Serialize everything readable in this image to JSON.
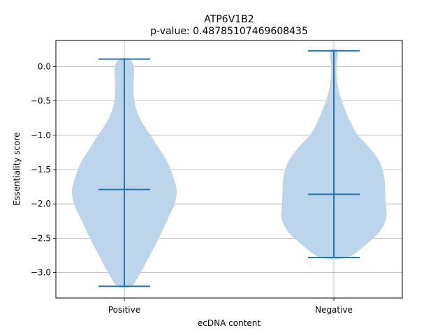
{
  "chart_data": {
    "type": "violin",
    "title": "ATP6V1B2",
    "subtitle": "p-value: 0.48785107469608435",
    "xlabel": "ecDNA content",
    "ylabel": "Essentiality score",
    "categories": [
      "Positive",
      "Negative"
    ],
    "ylim": [
      -3.37,
      0.38
    ],
    "yticks": [
      0.0,
      -0.5,
      -1.0,
      -1.5,
      -2.0,
      -2.5,
      -3.0
    ],
    "ytick_labels": [
      "0.0",
      "−0.5",
      "−1.0",
      "−1.5",
      "−2.0",
      "−2.5",
      "−3.0"
    ],
    "grid": true,
    "colors": {
      "body": "#bcd5ea",
      "lines": "#1f77b4",
      "grid": "#b0b0b0"
    },
    "series": [
      {
        "category": "Positive",
        "min": -3.2,
        "max": 0.11,
        "median": -1.79,
        "density": [
          [
            0.11,
            0.09
          ],
          [
            0.0,
            0.18
          ],
          [
            -0.2,
            0.18
          ],
          [
            -0.4,
            0.18
          ],
          [
            -0.6,
            0.22
          ],
          [
            -0.8,
            0.33
          ],
          [
            -1.0,
            0.5
          ],
          [
            -1.2,
            0.67
          ],
          [
            -1.4,
            0.83
          ],
          [
            -1.6,
            0.93
          ],
          [
            -1.8,
            1.0
          ],
          [
            -2.0,
            0.96
          ],
          [
            -2.2,
            0.84
          ],
          [
            -2.4,
            0.72
          ],
          [
            -2.6,
            0.59
          ],
          [
            -2.8,
            0.45
          ],
          [
            -3.0,
            0.31
          ],
          [
            -3.2,
            0.13
          ]
        ]
      },
      {
        "category": "Negative",
        "min": -2.78,
        "max": 0.23,
        "median": -1.86,
        "density": [
          [
            0.23,
            0.07
          ],
          [
            0.0,
            0.05
          ],
          [
            -0.2,
            0.06
          ],
          [
            -0.4,
            0.11
          ],
          [
            -0.6,
            0.2
          ],
          [
            -0.8,
            0.31
          ],
          [
            -1.0,
            0.46
          ],
          [
            -1.2,
            0.7
          ],
          [
            -1.4,
            0.88
          ],
          [
            -1.6,
            0.96
          ],
          [
            -1.8,
            0.98
          ],
          [
            -2.0,
            0.99
          ],
          [
            -2.2,
            1.0
          ],
          [
            -2.4,
            0.88
          ],
          [
            -2.6,
            0.6
          ],
          [
            -2.78,
            0.25
          ]
        ]
      }
    ]
  }
}
